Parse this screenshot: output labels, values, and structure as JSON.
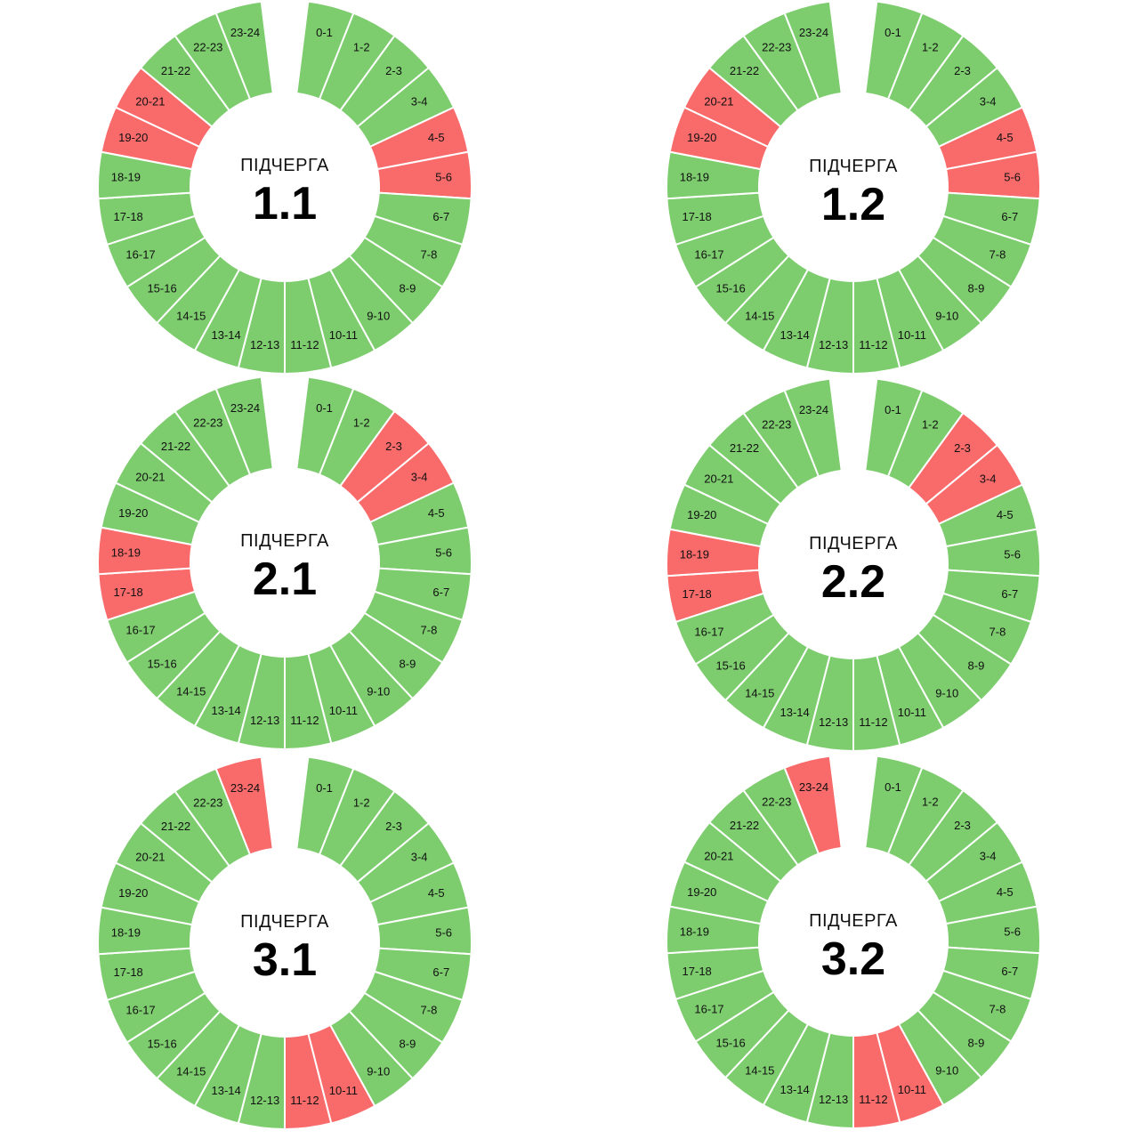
{
  "colors": {
    "power_on": "#7dcd6e",
    "power_off": "#f96a6a",
    "separator": "#ffffff"
  },
  "hour_labels": [
    "0-1",
    "1-2",
    "2-3",
    "3-4",
    "4-5",
    "5-6",
    "6-7",
    "7-8",
    "8-9",
    "9-10",
    "10-11",
    "11-12",
    "12-13",
    "13-14",
    "14-15",
    "15-16",
    "16-17",
    "17-18",
    "18-19",
    "19-20",
    "20-21",
    "21-22",
    "22-23",
    "23-24"
  ],
  "queues": [
    {
      "caption": "ПІДЧЕРГА",
      "number": "1.1",
      "off_hours": [
        4,
        5,
        19,
        20
      ]
    },
    {
      "caption": "ПІДЧЕРГА",
      "number": "1.2",
      "off_hours": [
        4,
        5,
        19,
        20
      ]
    },
    {
      "caption": "ПІДЧЕРГА",
      "number": "2.1",
      "off_hours": [
        2,
        3,
        17,
        18
      ]
    },
    {
      "caption": "ПІДЧЕРГА",
      "number": "2.2",
      "off_hours": [
        2,
        3,
        17,
        18
      ]
    },
    {
      "caption": "ПІДЧЕРГА",
      "number": "3.1",
      "off_hours": [
        10,
        11,
        23
      ]
    },
    {
      "caption": "ПІДЧЕРГА",
      "number": "3.2",
      "off_hours": [
        10,
        11,
        23
      ]
    }
  ]
}
